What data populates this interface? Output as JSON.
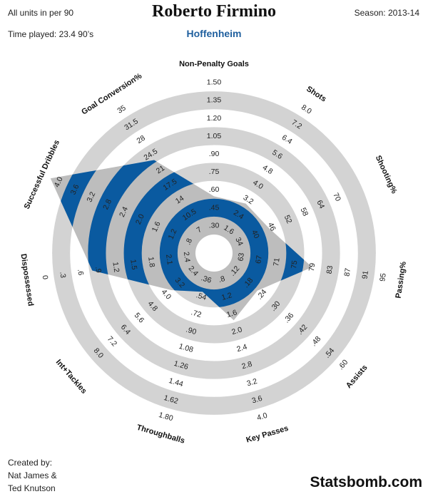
{
  "header": {
    "units_note": "All units in per 90",
    "time_played": "Time played: 23.4 90’s",
    "player": "Roberto Firmino",
    "team": "Hoffenheim",
    "season": "Season: 2013-14"
  },
  "footer": {
    "created_by": "Created by:",
    "author1": "Nat James &",
    "author2": "Ted Knutson",
    "brand": "Statsbomb.com"
  },
  "colors": {
    "ring": "#d3d3d3",
    "poly_fill": "#bdbdbd",
    "highlight": "#0a5aa0",
    "accent": "#1f5f9e"
  },
  "chart_data": {
    "type": "radar",
    "title": "Roberto Firmino",
    "subtitle": "Hoffenheim",
    "axes": [
      {
        "name": "Non-Penalty Goals",
        "ticks": [
          ".30",
          ".45",
          ".60",
          ".75",
          ".90",
          "1.05",
          "1.20",
          "1.35",
          "1.50"
        ]
      },
      {
        "name": "Shots",
        "ticks": [
          "1.6",
          "2.4",
          "3.2",
          "4.0",
          "4.8",
          "5.6",
          "6.4",
          "7.2",
          "8.0"
        ]
      },
      {
        "name": "Shooting%",
        "ticks": [
          "34",
          "40",
          "46",
          "52",
          "58",
          "64",
          "70"
        ]
      },
      {
        "name": "Passing%",
        "ticks": [
          "63",
          "67",
          "71",
          "75",
          "79",
          "83",
          "87",
          "91",
          "95"
        ]
      },
      {
        "name": "Assists",
        "ticks": [
          ".12",
          ".18",
          ".24",
          ".30",
          ".36",
          ".42",
          ".48",
          ".54",
          ".60"
        ]
      },
      {
        "name": "Key Passes",
        "ticks": [
          ".8",
          "1.2",
          "1.6",
          "2.0",
          "2.4",
          "2.8",
          "3.2",
          "3.6",
          "4.0"
        ]
      },
      {
        "name": "Throughballs",
        "ticks": [
          ".36",
          ".54",
          ".72",
          ".90",
          "1.08",
          "1.26",
          "1.44",
          "1.62",
          "1.80"
        ]
      },
      {
        "name": "Int+Tackles",
        "ticks": [
          "2.4",
          "3.2",
          "4.0",
          "4.8",
          "5.6",
          "6.4",
          "7.2",
          "8.0"
        ]
      },
      {
        "name": "Dispossessed",
        "ticks": [
          "2.4",
          "2.1",
          "1.8",
          "1.5",
          "1.2",
          ".9",
          ".6",
          ".3",
          "0"
        ]
      },
      {
        "name": "Successful Dribbles",
        "ticks": [
          ".8",
          "1.2",
          "1.6",
          "2.0",
          "2.4",
          "2.8",
          "3.2",
          "3.6",
          "4.0"
        ]
      },
      {
        "name": "Goal Conversion%",
        "ticks": [
          "7",
          "10.5",
          "14",
          "17.5",
          "21",
          "24.5",
          "28",
          "31.5",
          "35"
        ]
      }
    ],
    "values": [
      0.47,
      2.6,
      42.0,
      77.0,
      0.19,
      1.55,
      0.4,
      3.3,
      0.95,
      4.0,
      21.5
    ]
  }
}
